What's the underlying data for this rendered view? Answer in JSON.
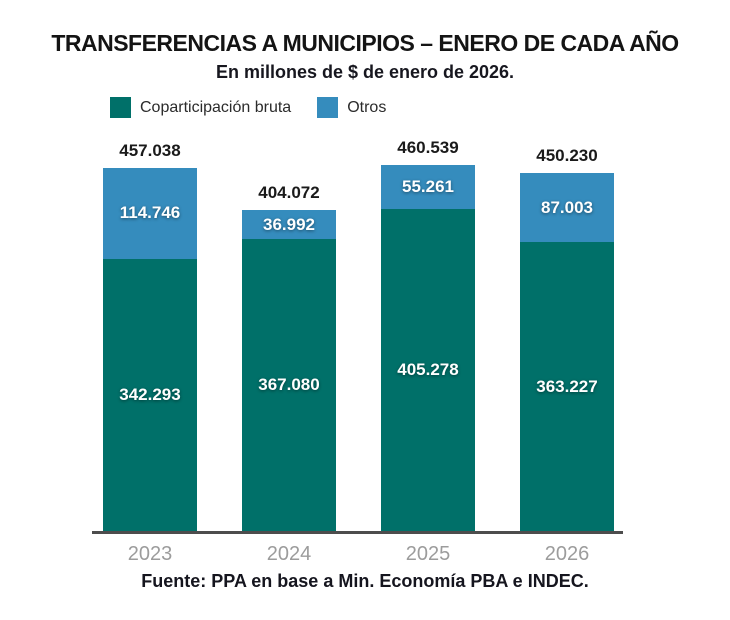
{
  "title": "TRANSFERENCIAS A MUNICIPIOS – ENERO DE CADA AÑO",
  "subtitle": "En millones de $ de enero de 2026.",
  "source": "Fuente: PPA en base a Min. Economía PBA e INDEC.",
  "colors": {
    "coparticipacion": "#007069",
    "otros": "#358cbd",
    "axis": "#4d4d4d",
    "year_label": "#9c9c9c",
    "total_label": "#1a1a1a",
    "segment_label": "#ffffff"
  },
  "legend": {
    "items": [
      {
        "label": "Coparticipación bruta",
        "color": "#007069"
      },
      {
        "label": "Otros",
        "color": "#358cbd"
      }
    ]
  },
  "chart_data": {
    "type": "bar",
    "stacked": true,
    "title": "TRANSFERENCIAS A MUNICIPIOS – ENERO DE CADA AÑO",
    "subtitle": "En millones de $ de enero de 2026.",
    "xlabel": "",
    "ylabel": "En millones de $ de enero de 2026",
    "grid": false,
    "legend_position": "top-left",
    "categories": [
      "2023",
      "2024",
      "2025",
      "2026"
    ],
    "series": [
      {
        "name": "Coparticipación bruta",
        "color": "#007069",
        "values": [
          342293,
          367080,
          405278,
          363227
        ],
        "labels": [
          "342.293",
          "367.080",
          "405.278",
          "363.227"
        ]
      },
      {
        "name": "Otros",
        "color": "#358cbd",
        "values": [
          114746,
          36992,
          55261,
          87003
        ],
        "labels": [
          "114.746",
          "36.992",
          "55.261",
          "87.003"
        ]
      }
    ],
    "totals": [
      457038,
      404072,
      460539,
      450230
    ],
    "total_labels": [
      "457.038",
      "404.072",
      "460.539",
      "450.230"
    ],
    "ylim": [
      0,
      460539
    ]
  }
}
